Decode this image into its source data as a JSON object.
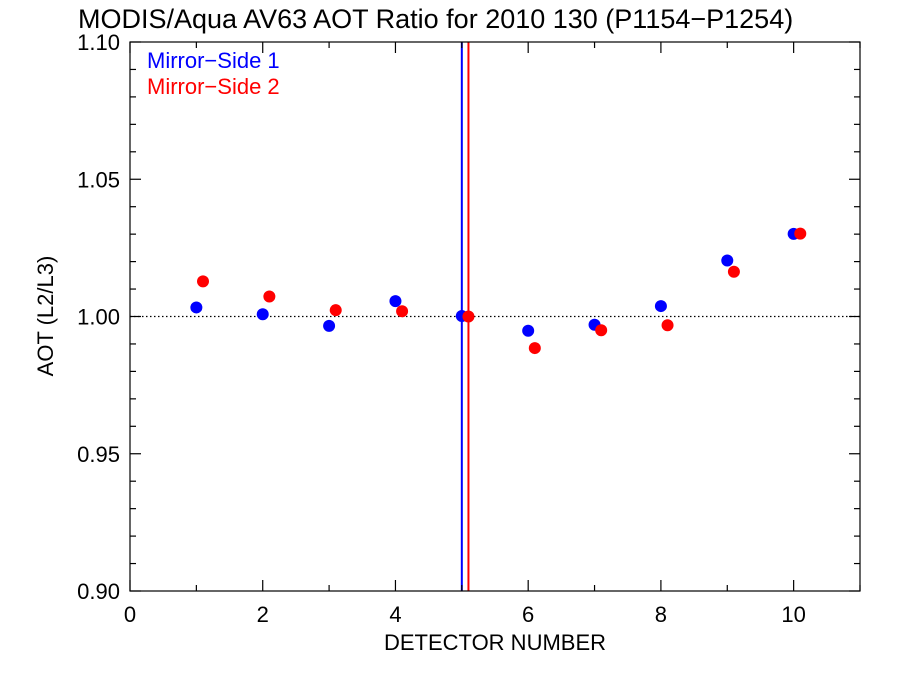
{
  "chart_data": {
    "type": "scatter",
    "title": "MODIS/Aqua AV63 AOT Ratio for 2010 130 (P1154−P1254)",
    "xlabel": "DETECTOR NUMBER",
    "ylabel": "AOT (L2/L3)",
    "xlim": [
      0,
      11
    ],
    "ylim": [
      0.9,
      1.1
    ],
    "x_ticks": [
      0,
      2,
      4,
      6,
      8,
      10
    ],
    "x_tick_labels": [
      "0",
      "2",
      "4",
      "6",
      "8",
      "10"
    ],
    "y_ticks": [
      0.9,
      0.95,
      1.0,
      1.05,
      1.1
    ],
    "y_tick_labels": [
      "0.90",
      "0.95",
      "1.00",
      "1.05",
      "1.10"
    ],
    "reference_line_y": 1.0,
    "legend_placement": "top-left",
    "series": [
      {
        "name": "Mirror−Side 1",
        "color": "#0000ff",
        "x": [
          1,
          2,
          3,
          4,
          5,
          6,
          7,
          8,
          9,
          10
        ],
        "y": [
          1.0033,
          1.0008,
          0.9966,
          1.0056,
          1.0002,
          0.9948,
          0.997,
          1.0038,
          1.0204,
          1.0301
        ],
        "vline_x": 5.0
      },
      {
        "name": "Mirror−Side 2",
        "color": "#ff0000",
        "x": [
          1.1,
          2.1,
          3.1,
          4.1,
          5.1,
          6.1,
          7.1,
          8.1,
          9.1,
          10.1
        ],
        "y": [
          1.0128,
          1.0073,
          1.0023,
          1.0019,
          1.0,
          0.9885,
          0.995,
          0.9968,
          1.0163,
          1.0302
        ],
        "vline_x": 5.1
      }
    ]
  }
}
